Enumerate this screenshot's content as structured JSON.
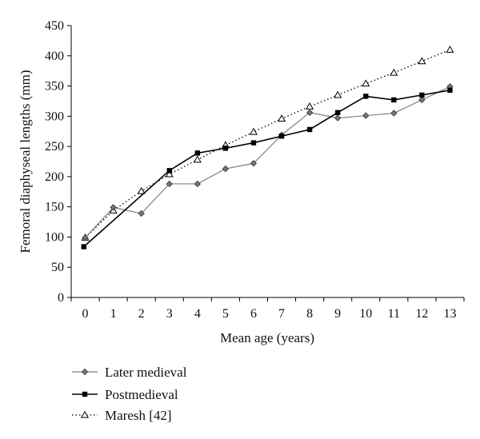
{
  "chart_data": {
    "type": "line",
    "title": "",
    "xlabel": "Mean age (years)",
    "ylabel": "Femoral diaphyseal lengths (mm)",
    "xlim": [
      -0.5,
      13.5
    ],
    "ylim": [
      0,
      450
    ],
    "x_ticks": [
      "0",
      "1",
      "2",
      "3",
      "4",
      "5",
      "6",
      "7",
      "8",
      "9",
      "10",
      "11",
      "12",
      "13"
    ],
    "y_ticks": [
      "0",
      "50",
      "100",
      "150",
      "200",
      "250",
      "300",
      "350",
      "400",
      "450"
    ],
    "grid": false,
    "legend_position": "bottom-left",
    "series": [
      {
        "name": "Later medieval",
        "color": "#808080",
        "marker": "diamond",
        "line_style": "solid",
        "x": [
          0,
          1,
          2,
          3,
          4,
          5,
          6,
          7,
          8,
          9,
          10,
          11,
          12,
          13
        ],
        "values": [
          99,
          149,
          139,
          188,
          188,
          213,
          222,
          269,
          306,
          297,
          301,
          305,
          327,
          349
        ]
      },
      {
        "name": "Postmedieval",
        "color": "#000000",
        "marker": "square",
        "line_style": "solid",
        "x": [
          -0.05,
          3,
          4,
          5,
          6,
          7,
          8,
          9,
          10,
          11,
          12,
          13
        ],
        "values": [
          84,
          210,
          239,
          247,
          256,
          267,
          278,
          306,
          333,
          327,
          335,
          343
        ]
      },
      {
        "name": "Maresh [42]",
        "color": "#000000",
        "marker": "triangle-open",
        "line_style": "dotted",
        "x": [
          0,
          1,
          2,
          3,
          4,
          5,
          6,
          7,
          8,
          9,
          10,
          11,
          12,
          13
        ],
        "values": [
          99,
          144,
          176,
          204,
          228,
          252,
          274,
          296,
          316,
          335,
          354,
          372,
          391,
          410
        ]
      }
    ]
  }
}
